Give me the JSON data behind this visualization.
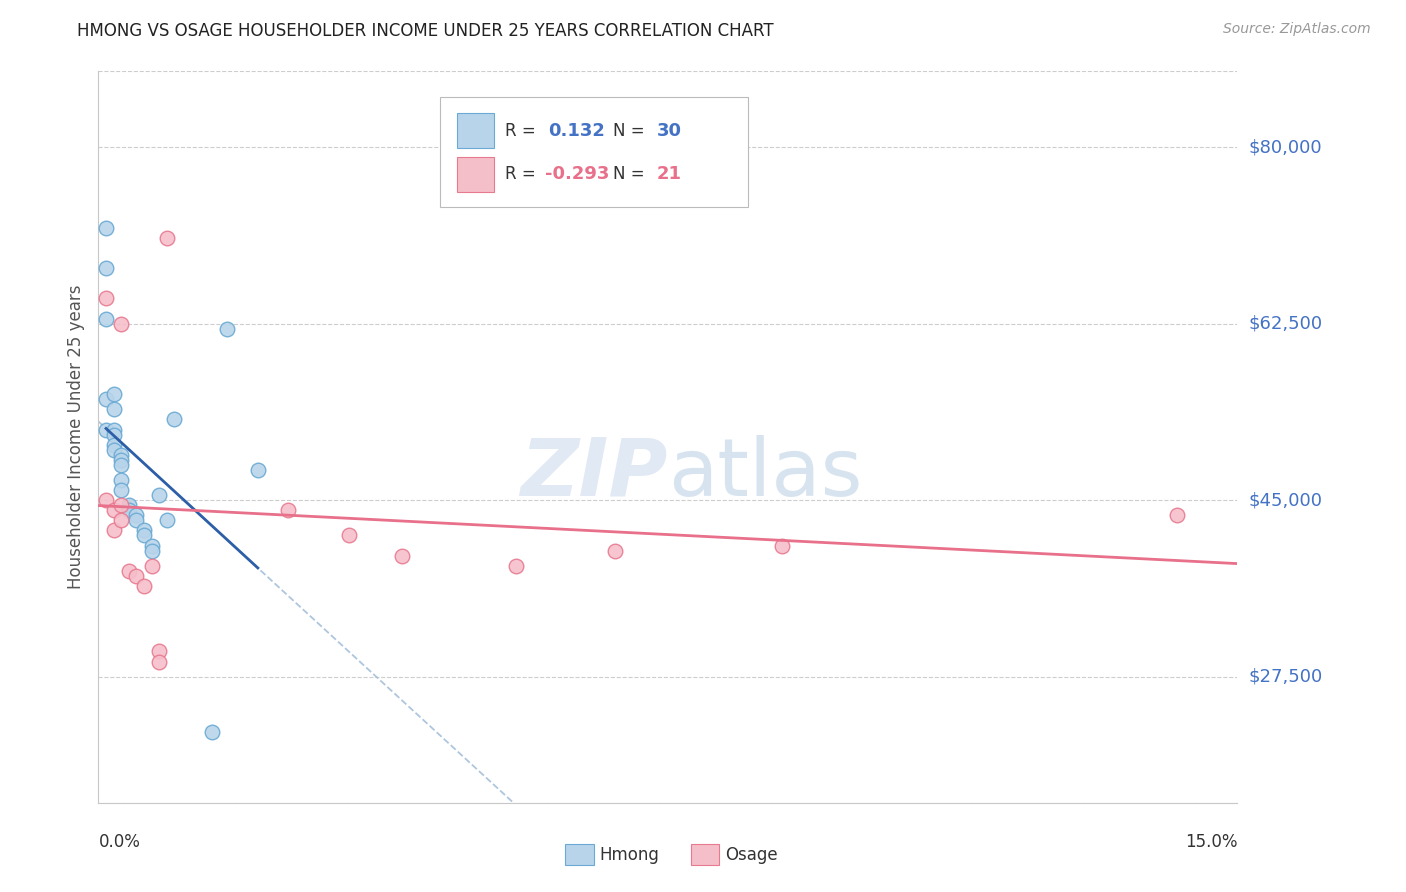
{
  "title": "HMONG VS OSAGE HOUSEHOLDER INCOME UNDER 25 YEARS CORRELATION CHART",
  "source": "Source: ZipAtlas.com",
  "ylabel": "Householder Income Under 25 years",
  "xlim": [
    0.0,
    0.15
  ],
  "ylim": [
    15000,
    87500
  ],
  "ytick_values": [
    27500,
    45000,
    62500,
    80000
  ],
  "ytick_labels": [
    "$27,500",
    "$45,000",
    "$62,500",
    "$80,000"
  ],
  "background_color": "#ffffff",
  "grid_color": "#c8c8c8",
  "hmong_color": "#b8d4ea",
  "hmong_edge_color": "#6aaad4",
  "osage_color": "#f5bfca",
  "osage_edge_color": "#e87a90",
  "hmong_line_color": "#2d5fa8",
  "osage_line_color": "#e8708a",
  "dashed_line_color": "#a0bcd8",
  "title_color": "#222222",
  "axis_label_color": "#555555",
  "ytick_color": "#4472c4",
  "legend_R_hmong": "0.132",
  "legend_N_hmong": "30",
  "legend_R_osage": "-0.293",
  "legend_N_osage": "21",
  "hmong_x": [
    0.001,
    0.001,
    0.001,
    0.001,
    0.001,
    0.002,
    0.002,
    0.002,
    0.002,
    0.002,
    0.002,
    0.003,
    0.003,
    0.003,
    0.003,
    0.003,
    0.004,
    0.004,
    0.005,
    0.005,
    0.006,
    0.006,
    0.007,
    0.007,
    0.008,
    0.009,
    0.01,
    0.015,
    0.017,
    0.021
  ],
  "hmong_y": [
    72000,
    68000,
    63000,
    55000,
    52000,
    55500,
    54000,
    52000,
    51500,
    50500,
    50000,
    49500,
    49000,
    48500,
    47000,
    46000,
    44500,
    44000,
    43500,
    43000,
    42000,
    41500,
    40500,
    40000,
    45500,
    43000,
    53000,
    22000,
    62000,
    48000
  ],
  "osage_x": [
    0.001,
    0.001,
    0.002,
    0.002,
    0.003,
    0.003,
    0.003,
    0.004,
    0.005,
    0.006,
    0.007,
    0.008,
    0.008,
    0.009,
    0.025,
    0.033,
    0.04,
    0.055,
    0.068,
    0.09,
    0.142
  ],
  "osage_y": [
    65000,
    45000,
    44000,
    42000,
    62500,
    44500,
    43000,
    38000,
    37500,
    36500,
    38500,
    30000,
    29000,
    71000,
    44000,
    41500,
    39500,
    38500,
    40000,
    40500,
    43500
  ],
  "marker_size": 110
}
